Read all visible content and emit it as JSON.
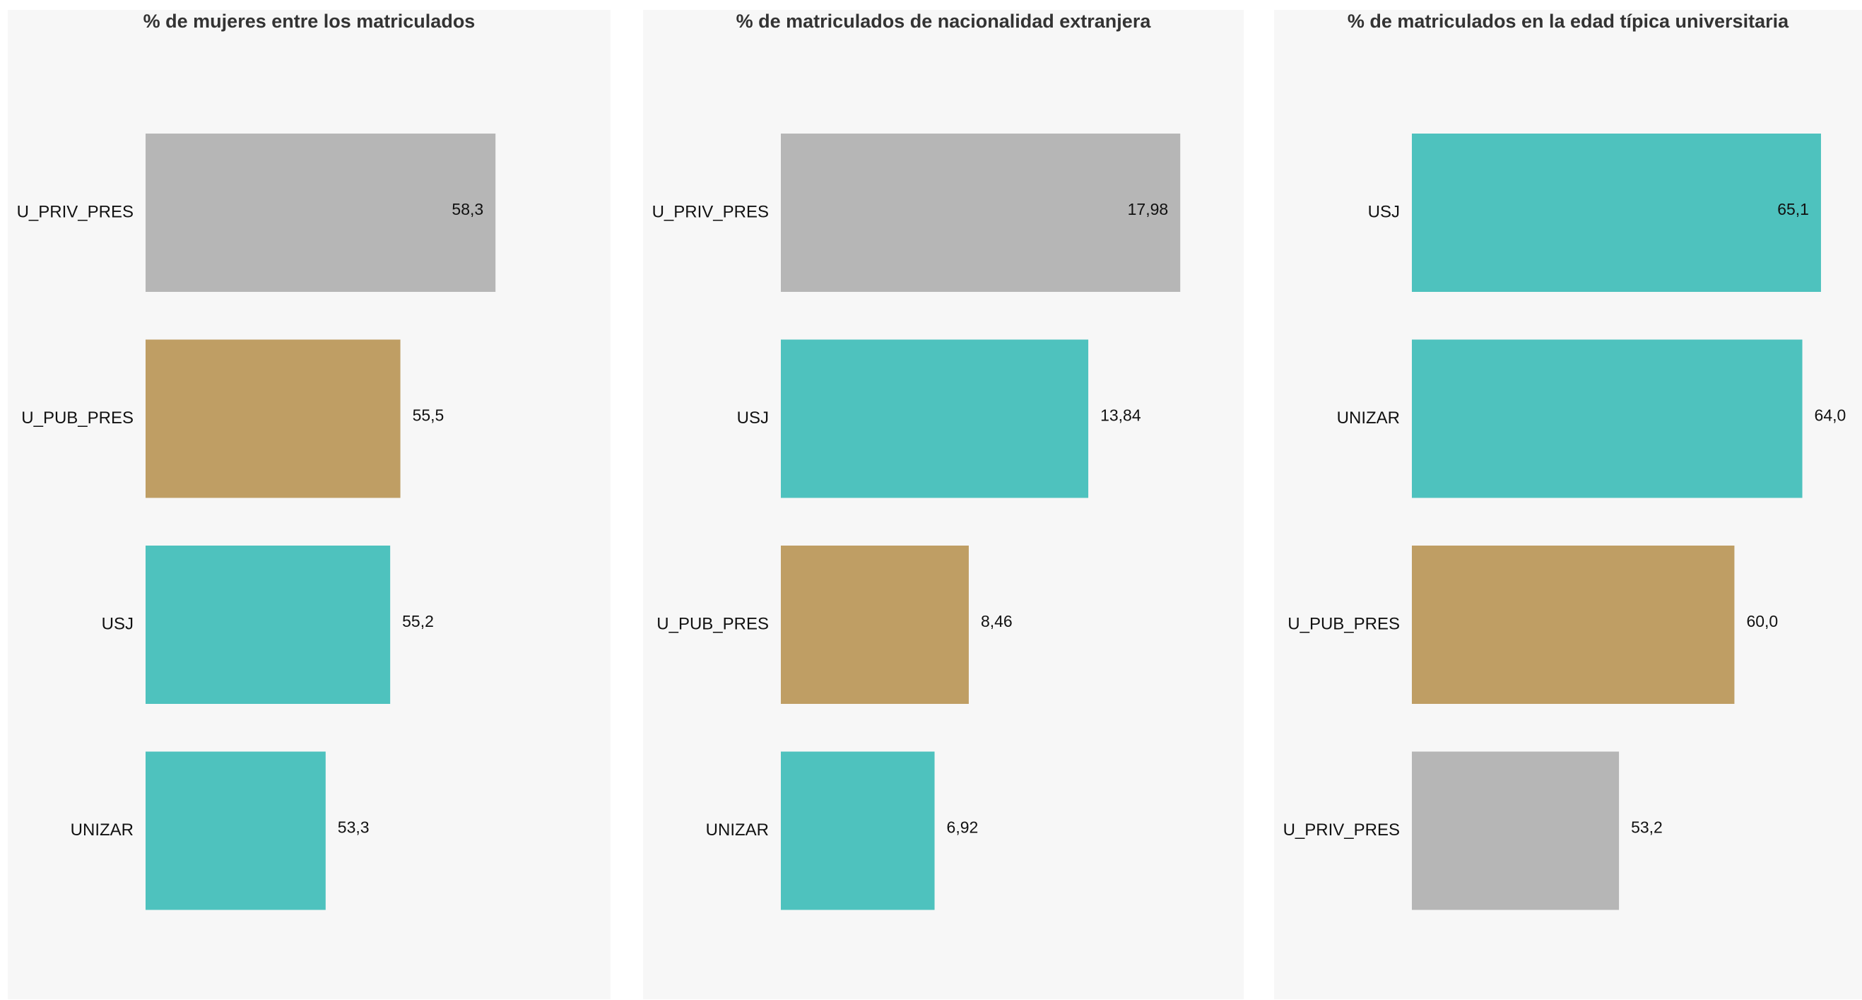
{
  "colors": {
    "panel_bg": "#f7f7f7",
    "teal": "#4ec2be",
    "gold": "#bf9e64",
    "gray": "#b6b6b6"
  },
  "chart_data": [
    {
      "type": "bar",
      "orientation": "horizontal",
      "title": "% de mujeres entre los matriculados",
      "categories": [
        "U_PRIV_PRES",
        "U_PUB_PRES",
        "USJ",
        "UNIZAR"
      ],
      "values": [
        58.3,
        55.5,
        55.2,
        53.3
      ],
      "value_labels": [
        "58,3",
        "55,5",
        "55,2",
        "53,3"
      ],
      "bar_colors": [
        "gray",
        "gold",
        "teal",
        "teal"
      ],
      "xlim": [
        48,
        61
      ],
      "grid": false
    },
    {
      "type": "bar",
      "orientation": "horizontal",
      "title": "% de matriculados de nacionalidad extranjera",
      "categories": [
        "U_PRIV_PRES",
        "USJ",
        "U_PUB_PRES",
        "UNIZAR"
      ],
      "values": [
        17.98,
        13.84,
        8.46,
        6.92
      ],
      "value_labels": [
        "17,98",
        "13,84",
        "8,46",
        "6,92"
      ],
      "bar_colors": [
        "gray",
        "teal",
        "gold",
        "teal"
      ],
      "xlim": [
        0,
        19.5
      ],
      "grid": false
    },
    {
      "type": "bar",
      "orientation": "horizontal",
      "title": "% de matriculados en la edad típica universitaria",
      "categories": [
        "USJ",
        "UNIZAR",
        "U_PUB_PRES",
        "U_PRIV_PRES"
      ],
      "values": [
        65.1,
        64.0,
        60.0,
        53.2
      ],
      "value_labels": [
        "65,1",
        "64,0",
        "60,0",
        "53,2"
      ],
      "bar_colors": [
        "teal",
        "teal",
        "gold",
        "gray"
      ],
      "xlim": [
        41,
        66.6
      ],
      "grid": false
    }
  ]
}
